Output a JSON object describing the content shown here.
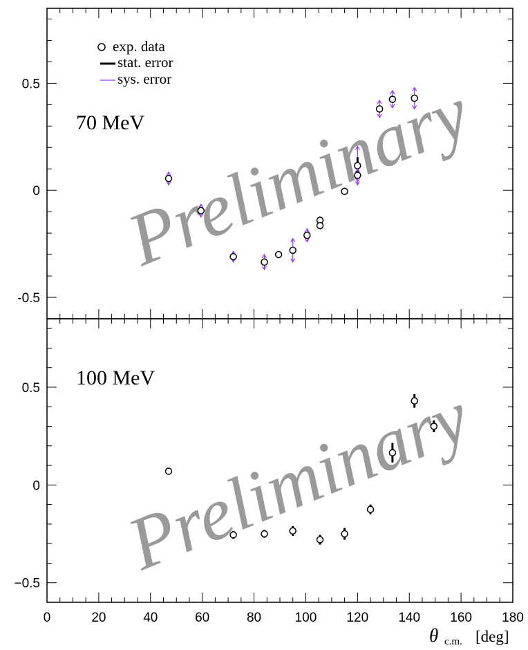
{
  "chart_data": [
    {
      "type": "scatter",
      "panel": "top",
      "energy_label": "70 MeV",
      "watermark": "Preliminary",
      "xlim": [
        0,
        180
      ],
      "ylim": [
        -0.6,
        0.85
      ],
      "y_ticks": [
        -0.5,
        0,
        0.5
      ],
      "y_tick_labels": [
        "-0.5",
        "0",
        "0.5"
      ],
      "legend": {
        "position": "top-left",
        "entries": [
          {
            "key": "data",
            "label": "exp. data",
            "symbol": "open-circle",
            "color": "#000000"
          },
          {
            "key": "stat",
            "label": "stat. error",
            "symbol": "thick-line",
            "color": "#000000"
          },
          {
            "key": "sys",
            "label": "sys. error",
            "symbol": "thin-line",
            "color": "#9933ff"
          }
        ]
      },
      "points": [
        {
          "x": 47,
          "y": 0.055,
          "stat": 0.012,
          "sys": 0.03
        },
        {
          "x": 59.5,
          "y": -0.095,
          "stat": 0.012,
          "sys": 0.03
        },
        {
          "x": 72,
          "y": -0.31,
          "stat": 0.012,
          "sys": 0.025
        },
        {
          "x": 84,
          "y": -0.335,
          "stat": 0.015,
          "sys": 0.035
        },
        {
          "x": 89.5,
          "y": -0.3,
          "stat": 0.01,
          "sys": 0.01
        },
        {
          "x": 95,
          "y": -0.28,
          "stat": 0.015,
          "sys": 0.055
        },
        {
          "x": 100.5,
          "y": -0.21,
          "stat": 0.012,
          "sys": 0.03
        },
        {
          "x": 105.5,
          "y": -0.14,
          "stat": 0.01,
          "sys": 0.015
        },
        {
          "x": 105.5,
          "y": -0.165,
          "stat": 0.01,
          "sys": 0.015
        },
        {
          "x": 115,
          "y": -0.005,
          "stat": 0.01,
          "sys": 0.015
        },
        {
          "x": 120,
          "y": 0.115,
          "stat": 0.04,
          "sys": 0.09
        },
        {
          "x": 120,
          "y": 0.07,
          "stat": 0.012,
          "sys": 0.03
        },
        {
          "x": 128.5,
          "y": 0.38,
          "stat": 0.012,
          "sys": 0.04
        },
        {
          "x": 133.5,
          "y": 0.425,
          "stat": 0.012,
          "sys": 0.04
        },
        {
          "x": 142,
          "y": 0.43,
          "stat": 0.012,
          "sys": 0.05
        }
      ]
    },
    {
      "type": "scatter",
      "panel": "bottom",
      "energy_label": "100 MeV",
      "watermark": "Preliminary",
      "xlim": [
        0,
        180
      ],
      "ylim": [
        -0.6,
        0.85
      ],
      "y_ticks": [
        -0.5,
        0,
        0.5
      ],
      "y_tick_labels": [
        "−0.5",
        "0",
        "0.5"
      ],
      "x_ticks": [
        0,
        20,
        40,
        60,
        80,
        100,
        120,
        140,
        160,
        180
      ],
      "x_tick_labels": [
        "0",
        "20",
        "40",
        "60",
        "80",
        "100",
        "120",
        "140",
        "160",
        "180"
      ],
      "xlabel_symbol": "θ",
      "xlabel_subscript": "c.m.",
      "xlabel_unit": "[deg]",
      "points": [
        {
          "x": 47,
          "y": 0.07,
          "stat": 0.0,
          "sys": 0.0
        },
        {
          "x": 72,
          "y": -0.255,
          "stat": 0.02,
          "sys": 0.0
        },
        {
          "x": 84,
          "y": -0.25,
          "stat": 0.02,
          "sys": 0.0
        },
        {
          "x": 95,
          "y": -0.235,
          "stat": 0.025,
          "sys": 0.0
        },
        {
          "x": 105.5,
          "y": -0.28,
          "stat": 0.025,
          "sys": 0.0
        },
        {
          "x": 115,
          "y": -0.25,
          "stat": 0.03,
          "sys": 0.0
        },
        {
          "x": 125,
          "y": -0.125,
          "stat": 0.025,
          "sys": 0.0
        },
        {
          "x": 133.5,
          "y": 0.165,
          "stat": 0.05,
          "sys": 0.0
        },
        {
          "x": 142,
          "y": 0.43,
          "stat": 0.035,
          "sys": 0.0
        },
        {
          "x": 149.5,
          "y": 0.3,
          "stat": 0.03,
          "sys": 0.0
        }
      ]
    }
  ]
}
